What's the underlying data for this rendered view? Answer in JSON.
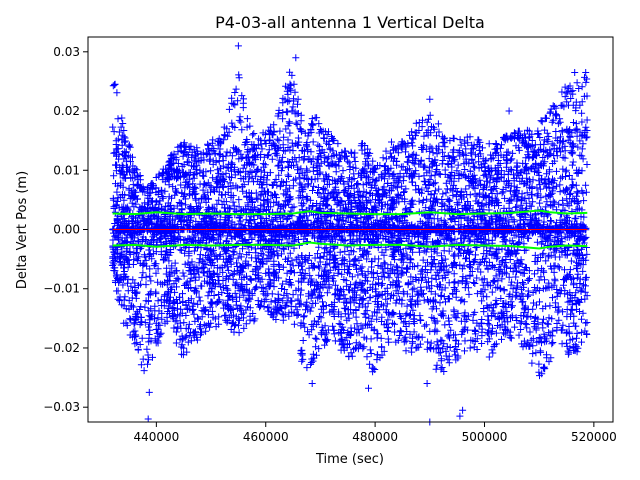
{
  "chart_data": {
    "type": "scatter",
    "title": "P4-03-all antenna 1 Vertical Delta",
    "xlabel": "Time (sec)",
    "ylabel": "Delta Vert Pos (m)",
    "xlim": [
      427500,
      523500
    ],
    "ylim": [
      -0.0325,
      0.0325
    ],
    "x_ticks": [
      440000,
      460000,
      480000,
      500000,
      520000
    ],
    "x_tick_labels": [
      "440000",
      "460000",
      "480000",
      "500000",
      "520000"
    ],
    "y_ticks": [
      -0.03,
      -0.02,
      -0.01,
      0.0,
      0.01,
      0.02,
      0.03
    ],
    "y_tick_labels": [
      "−0.03",
      "−0.02",
      "−0.01",
      "0.00",
      "0.01",
      "0.02",
      "0.03"
    ],
    "grid": false,
    "legend": "none",
    "series": [
      {
        "marker": "plus",
        "color": "#0000ff",
        "x_range": [
          432000,
          518800
        ],
        "envelope": {
          "x": [
            432000,
            433000,
            434000,
            436000,
            438000,
            440000,
            442000,
            445000,
            448000,
            452000,
            455000,
            457000,
            460000,
            463000,
            465000,
            467000,
            469000,
            472000,
            475000,
            478000,
            480000,
            483000,
            486000,
            489000,
            492000,
            495000,
            498000,
            501000,
            504000,
            507000,
            510000,
            513000,
            516000,
            518800
          ],
          "upper": [
            0.026,
            0.024,
            0.018,
            0.012,
            0.007,
            0.009,
            0.012,
            0.015,
            0.014,
            0.016,
            0.027,
            0.018,
            0.016,
            0.022,
            0.029,
            0.016,
            0.02,
            0.016,
            0.013,
            0.015,
            0.011,
            0.015,
            0.016,
            0.02,
            0.018,
            0.015,
            0.016,
            0.015,
            0.016,
            0.017,
            0.018,
            0.022,
            0.026,
            0.026
          ],
          "lower": [
            -0.008,
            -0.012,
            -0.016,
            -0.02,
            -0.026,
            -0.02,
            -0.016,
            -0.022,
            -0.018,
            -0.016,
            -0.018,
            -0.016,
            -0.014,
            -0.016,
            -0.015,
            -0.025,
            -0.022,
            -0.018,
            -0.022,
            -0.02,
            -0.026,
            -0.018,
            -0.022,
            -0.02,
            -0.025,
            -0.022,
            -0.02,
            -0.022,
            -0.018,
            -0.02,
            -0.026,
            -0.02,
            -0.022,
            -0.018
          ]
        },
        "outliers": [
          {
            "x": 455000,
            "y": 0.031
          },
          {
            "x": 465500,
            "y": 0.029
          },
          {
            "x": 438500,
            "y": -0.032
          },
          {
            "x": 438700,
            "y": -0.0275
          },
          {
            "x": 489500,
            "y": -0.026
          },
          {
            "x": 496000,
            "y": -0.0305
          },
          {
            "x": 495500,
            "y": -0.0315
          },
          {
            "x": 478800,
            "y": -0.0268
          },
          {
            "x": 468500,
            "y": -0.026
          },
          {
            "x": 490000,
            "y": -0.0325
          },
          {
            "x": 516500,
            "y": 0.0265
          },
          {
            "x": 518500,
            "y": 0.0265
          },
          {
            "x": 504500,
            "y": 0.02
          },
          {
            "x": 490000,
            "y": 0.022
          }
        ]
      },
      {
        "marker": "line",
        "color": "#00ff00",
        "x": [
          432000,
          436000,
          440000,
          445000,
          450000,
          455000,
          460000,
          465000,
          468000,
          470000,
          475000,
          480000,
          485000,
          490000,
          495000,
          500000,
          505000,
          510000,
          512000,
          515000,
          518800
        ],
        "values": [
          0.0027,
          0.0026,
          0.0029,
          0.0026,
          0.0027,
          0.0026,
          0.0026,
          0.0027,
          0.0031,
          0.0028,
          0.0027,
          0.0026,
          0.0026,
          0.0029,
          0.0026,
          0.0027,
          0.0028,
          0.0032,
          0.0029,
          0.0027,
          0.0028
        ]
      },
      {
        "marker": "line",
        "color": "#00ff00",
        "x": [
          432000,
          436000,
          440000,
          445000,
          450000,
          455000,
          460000,
          465000,
          468000,
          470000,
          475000,
          480000,
          485000,
          490000,
          495000,
          500000,
          505000,
          510000,
          512000,
          515000,
          518800
        ],
        "values": [
          -0.0027,
          -0.0026,
          -0.0029,
          -0.0026,
          -0.0027,
          -0.0026,
          -0.0026,
          -0.0027,
          -0.0022,
          -0.0024,
          -0.0027,
          -0.0026,
          -0.0026,
          -0.0029,
          -0.0026,
          -0.0027,
          -0.0028,
          -0.0032,
          -0.0029,
          -0.0027,
          -0.0028
        ]
      },
      {
        "marker": "line",
        "color": "#ff0000",
        "x": [
          432000,
          518800
        ],
        "values": [
          0.0,
          0.0
        ]
      }
    ]
  }
}
